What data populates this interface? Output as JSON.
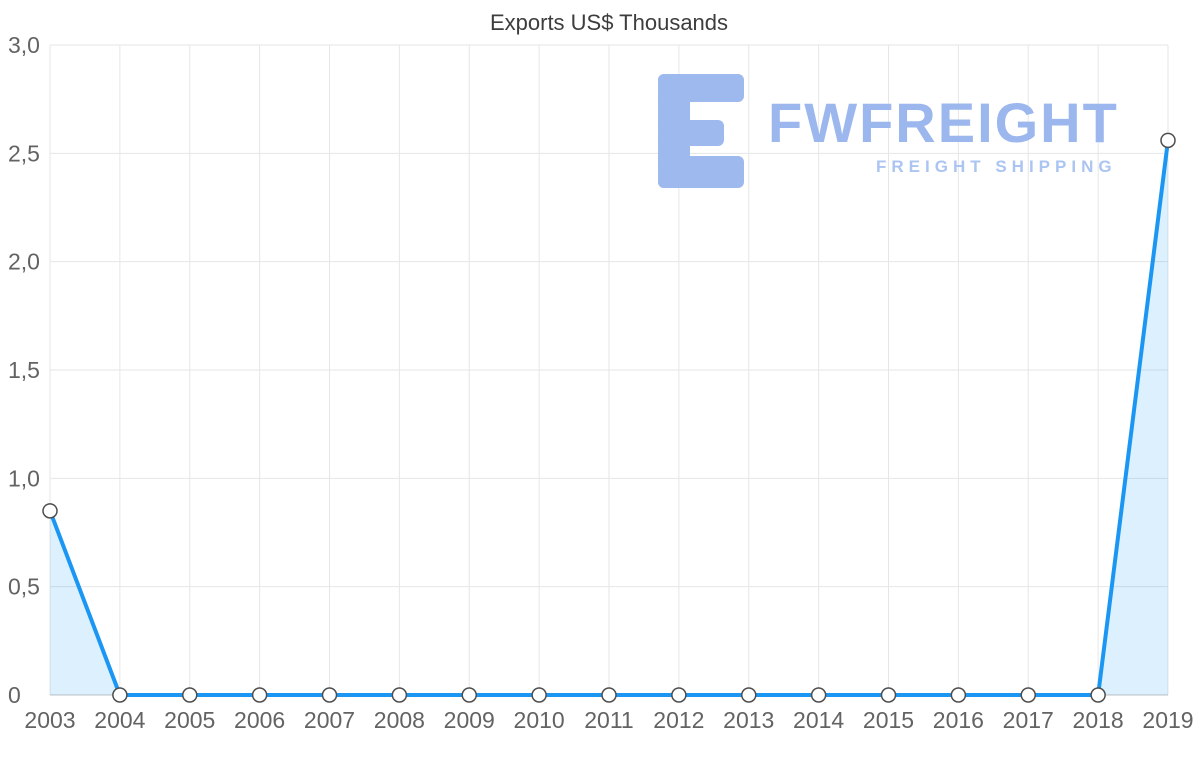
{
  "chart": {
    "title": "Exports US$ Thousands"
  },
  "watermark": {
    "brand": "FWFREIGHT",
    "tagline": "FREIGHT SHIPPING",
    "logo_color": "#9db9ed",
    "brand_color": "#9cb7ee",
    "tagline_color": "#abc4f2"
  },
  "chart_data": {
    "type": "area",
    "title": "Exports US$ Thousands",
    "x": [
      "2003",
      "2004",
      "2005",
      "2006",
      "2007",
      "2008",
      "2009",
      "2010",
      "2011",
      "2012",
      "2013",
      "2014",
      "2015",
      "2016",
      "2017",
      "2018",
      "2019"
    ],
    "values": [
      0.85,
      0,
      0,
      0,
      0,
      0,
      0,
      0,
      0,
      0,
      0,
      0,
      0,
      0,
      0,
      0,
      2.56
    ],
    "ylim": [
      0,
      3
    ],
    "yticks": [
      0,
      0.5,
      1,
      1.5,
      2,
      2.5,
      3
    ],
    "ytick_labels": [
      "0",
      "0,5",
      "1,0",
      "1,5",
      "2,0",
      "2,5",
      "3,0"
    ],
    "xlabel": "",
    "ylabel": "",
    "grid": true,
    "legend": "none",
    "line_color": "#1b97f3",
    "area_fill": "rgba(27,151,243,0.15)",
    "grid_color": "#e6e6e6",
    "axis_line_color": "#c2c2c2",
    "marker": {
      "fill": "#ffffff",
      "stroke": "#4d4d4d",
      "radius": 7
    }
  }
}
